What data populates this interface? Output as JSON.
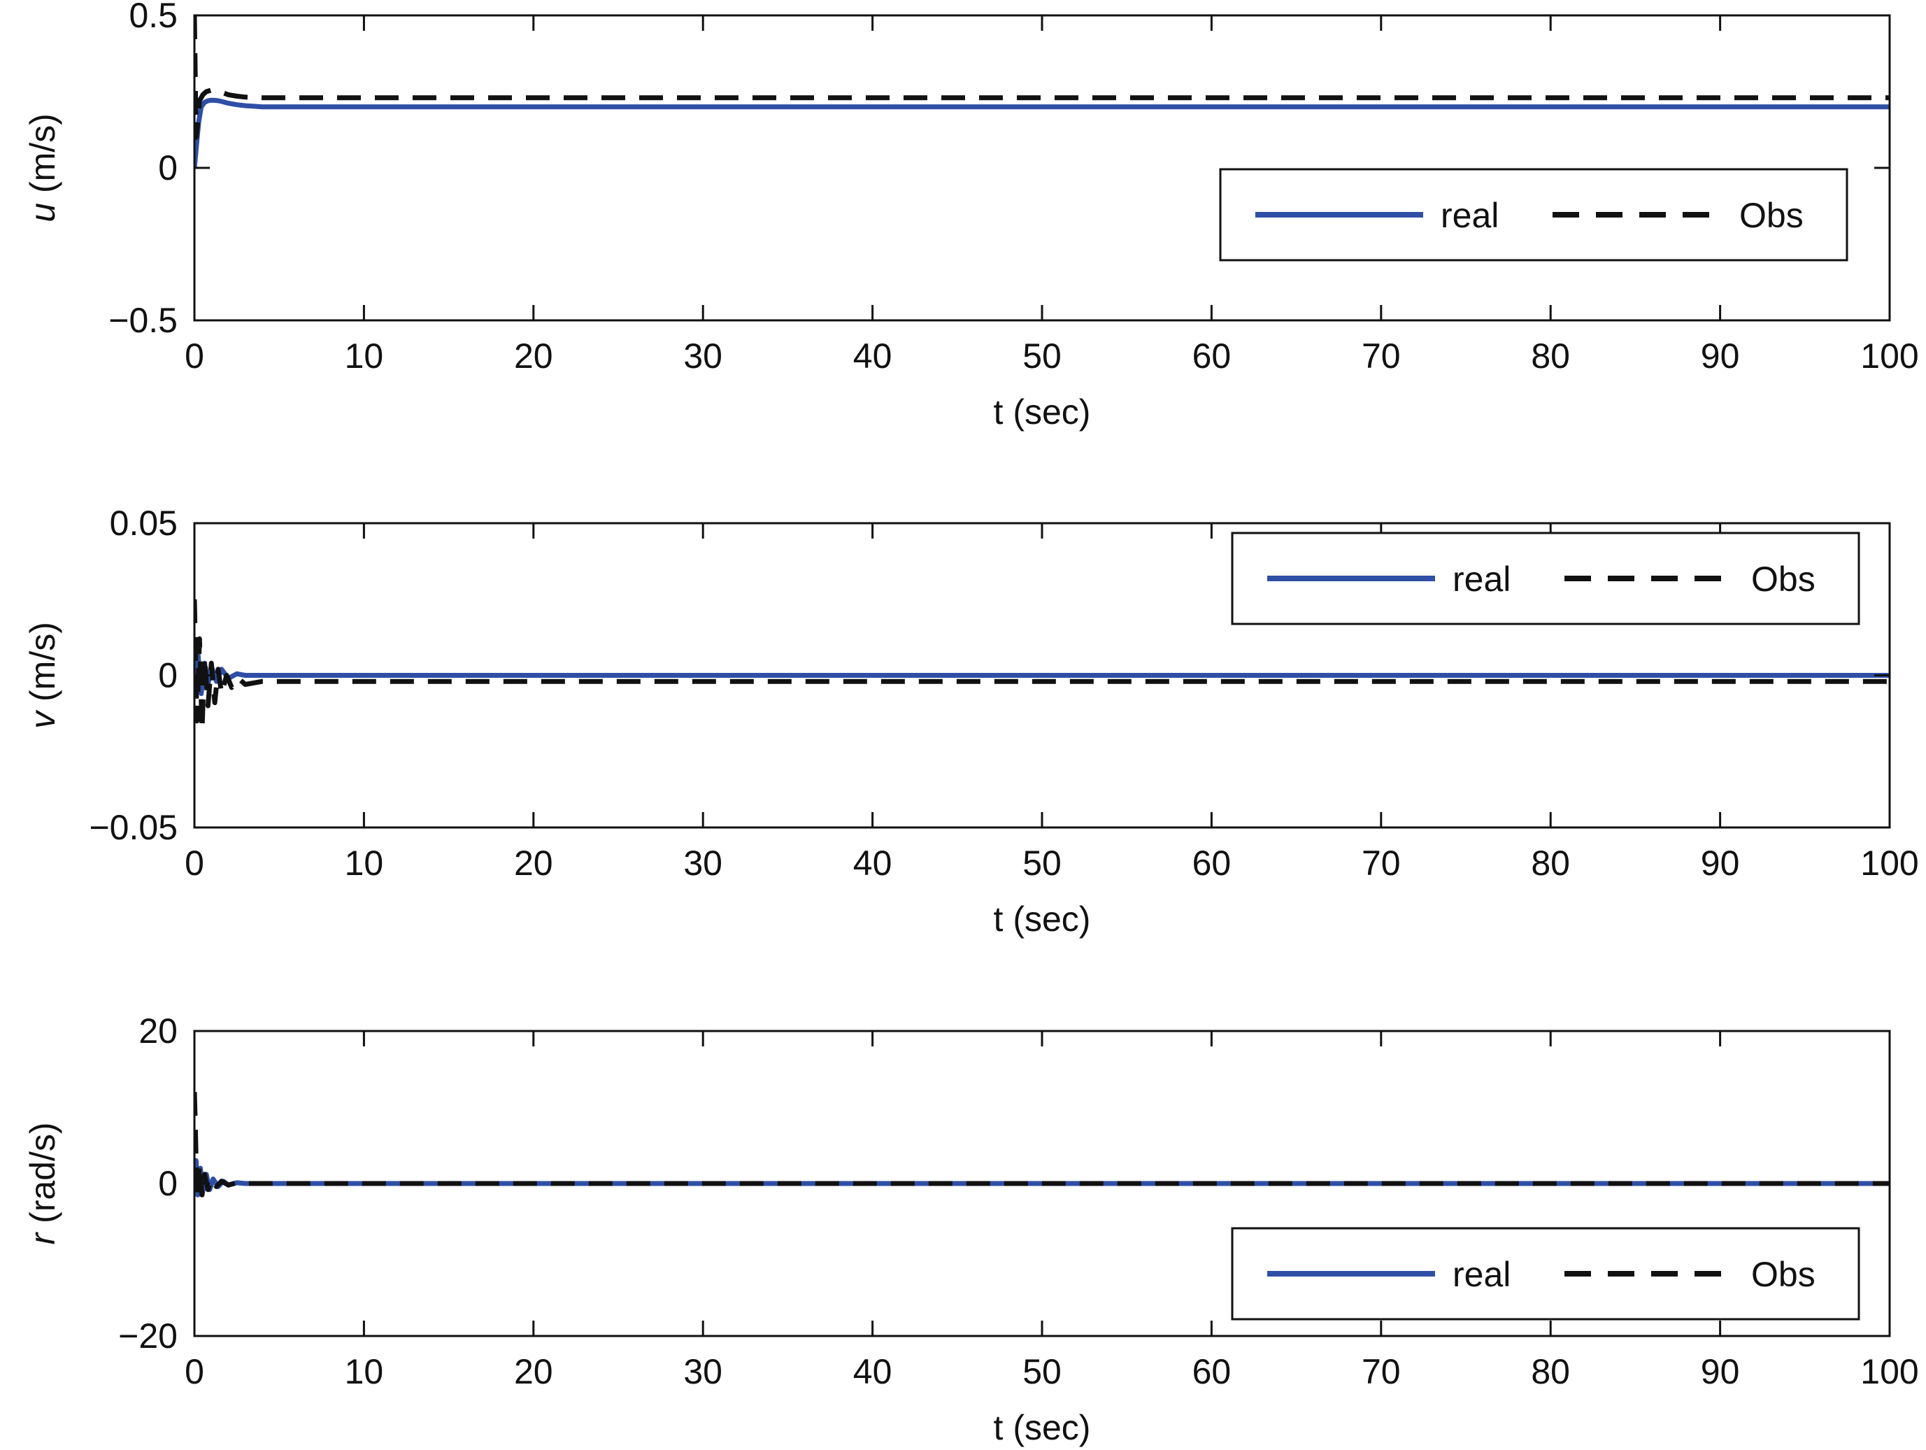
{
  "colors": {
    "real": "#2f4fa6",
    "obs": "#111111",
    "axes": "#111111",
    "background": "#ffffff"
  },
  "chart_data": [
    {
      "type": "line",
      "xlabel": "t (sec)",
      "ylabel": {
        "symbol": "u",
        "unit": " (m/s)"
      },
      "xlim": [
        0,
        100
      ],
      "ylim": [
        -0.5,
        0.5
      ],
      "xticks": [
        0,
        10,
        20,
        30,
        40,
        50,
        60,
        70,
        80,
        90,
        100
      ],
      "xtick_labels": [
        "0",
        "10",
        "20",
        "30",
        "40",
        "50",
        "60",
        "70",
        "80",
        "90",
        "100"
      ],
      "yticks": [
        -0.5,
        0,
        0.5
      ],
      "ytick_labels": [
        "−0.5",
        "0",
        "0.5"
      ],
      "grid": false,
      "legend": {
        "position": "center-right",
        "entries": [
          "real",
          "Obs"
        ]
      },
      "series": [
        {
          "name": "real",
          "style": "solid",
          "x": [
            0,
            0.1,
            0.25,
            0.4,
            0.6,
            0.8,
            1.0,
            1.3,
            1.6,
            2.0,
            2.5,
            3.0,
            3.5,
            4,
            5,
            10,
            20,
            40,
            60,
            80,
            100
          ],
          "y": [
            0.0,
            0.06,
            0.15,
            0.2,
            0.215,
            0.22,
            0.222,
            0.221,
            0.218,
            0.212,
            0.207,
            0.204,
            0.202,
            0.2,
            0.2,
            0.2,
            0.2,
            0.2,
            0.2,
            0.2,
            0.2
          ]
        },
        {
          "name": "Obs",
          "style": "dashed",
          "x": [
            0,
            0.1,
            0.2,
            0.3,
            0.5,
            0.7,
            1.0,
            1.3,
            1.6,
            2.0,
            2.5,
            3.0,
            3.5,
            4,
            5,
            10,
            20,
            40,
            60,
            80,
            100
          ],
          "y": [
            0.5,
            0.1,
            0.15,
            0.22,
            0.24,
            0.25,
            0.255,
            0.252,
            0.248,
            0.24,
            0.235,
            0.232,
            0.231,
            0.23,
            0.23,
            0.23,
            0.23,
            0.23,
            0.23,
            0.23,
            0.23
          ]
        }
      ]
    },
    {
      "type": "line",
      "xlabel": "t (sec)",
      "ylabel": {
        "symbol": "v",
        "unit": " (m/s)"
      },
      "xlim": [
        0,
        100
      ],
      "ylim": [
        -0.05,
        0.05
      ],
      "xticks": [
        0,
        10,
        20,
        30,
        40,
        50,
        60,
        70,
        80,
        90,
        100
      ],
      "xtick_labels": [
        "0",
        "10",
        "20",
        "30",
        "40",
        "50",
        "60",
        "70",
        "80",
        "90",
        "100"
      ],
      "yticks": [
        -0.05,
        0,
        0.05
      ],
      "ytick_labels": [
        "−0.05",
        "0",
        "0.05"
      ],
      "grid": false,
      "legend": {
        "position": "top-right",
        "entries": [
          "real",
          "Obs"
        ]
      },
      "series": [
        {
          "name": "real",
          "style": "solid",
          "x": [
            0,
            0.2,
            0.4,
            0.6,
            0.8,
            1.0,
            1.3,
            1.6,
            2.0,
            2.5,
            3.0,
            4,
            10,
            50,
            100
          ],
          "y": [
            0.0,
            0.008,
            -0.006,
            0.004,
            -0.003,
            0.003,
            -0.002,
            0.002,
            -0.001,
            0.0005,
            0.0,
            0.0,
            0.0,
            0.0,
            0.0
          ]
        },
        {
          "name": "Obs",
          "style": "dashed",
          "x": [
            0,
            0.15,
            0.3,
            0.45,
            0.6,
            0.8,
            1.0,
            1.2,
            1.4,
            1.6,
            1.9,
            2.2,
            2.6,
            3.0,
            4,
            5,
            10,
            50,
            100
          ],
          "y": [
            0.025,
            -0.015,
            0.012,
            -0.018,
            0.006,
            -0.01,
            0.004,
            -0.009,
            0.002,
            -0.006,
            0.0,
            -0.004,
            -0.001,
            -0.003,
            -0.002,
            -0.002,
            -0.002,
            -0.002,
            -0.002
          ]
        }
      ]
    },
    {
      "type": "line",
      "xlabel": "t (sec)",
      "ylabel": {
        "symbol": "r",
        "unit": " (rad/s)"
      },
      "xlim": [
        0,
        100
      ],
      "ylim": [
        -20,
        20
      ],
      "xticks": [
        0,
        10,
        20,
        30,
        40,
        50,
        60,
        70,
        80,
        90,
        100
      ],
      "xtick_labels": [
        "0",
        "10",
        "20",
        "30",
        "40",
        "50",
        "60",
        "70",
        "80",
        "90",
        "100"
      ],
      "yticks": [
        -20,
        0,
        20
      ],
      "ytick_labels": [
        "−20",
        "0",
        "20"
      ],
      "grid": false,
      "legend": {
        "position": "bottom-right",
        "entries": [
          "real",
          "Obs"
        ]
      },
      "series": [
        {
          "name": "real",
          "style": "solid",
          "x": [
            0,
            0.1,
            0.2,
            0.35,
            0.5,
            0.7,
            0.9,
            1.1,
            1.4,
            1.7,
            2.0,
            2.5,
            3.0,
            4,
            10,
            50,
            100
          ],
          "y": [
            0.0,
            3.0,
            -1.5,
            2.0,
            -1.0,
            1.2,
            -0.8,
            0.6,
            -0.4,
            0.3,
            -0.2,
            0.1,
            0.0,
            0.0,
            0.0,
            0.0,
            0.0
          ]
        },
        {
          "name": "Obs",
          "style": "dashed",
          "x": [
            0,
            0.05,
            0.15,
            0.3,
            0.45,
            0.6,
            0.8,
            1.0,
            1.3,
            1.6,
            2.0,
            2.5,
            3.0,
            4,
            10,
            50,
            100
          ],
          "y": [
            12.0,
            8.0,
            -2.0,
            2.5,
            -1.5,
            1.2,
            -0.8,
            0.6,
            -0.4,
            0.3,
            -0.2,
            0.1,
            0.0,
            0.0,
            0.0,
            0.0,
            0.0
          ]
        }
      ]
    }
  ]
}
